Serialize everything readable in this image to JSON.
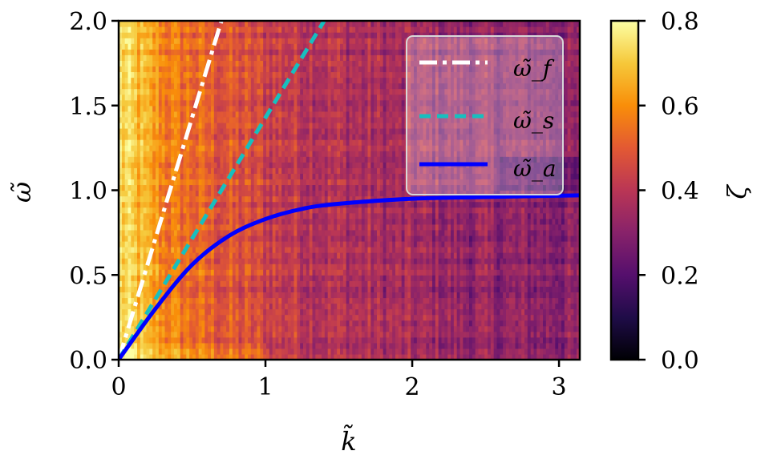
{
  "chart_data": {
    "type": "heatmap",
    "xlabel": "k̃",
    "ylabel": "ω̃",
    "xlim": [
      0,
      3.14159
    ],
    "ylim": [
      0,
      2.0
    ],
    "x_ticks": [
      0,
      1,
      2,
      3
    ],
    "y_ticks": [
      0.0,
      0.5,
      1.0,
      1.5,
      2.0
    ],
    "x_tick_labels": [
      "0",
      "1",
      "2",
      "3"
    ],
    "y_tick_labels": [
      "0.0",
      "0.5",
      "1.0",
      "1.5",
      "2.0"
    ],
    "colorbar": {
      "label": "ζ",
      "range": [
        0.0,
        0.8
      ],
      "ticks": [
        0.0,
        0.2,
        0.4,
        0.6,
        0.8
      ],
      "tick_labels": [
        "0.0",
        "0.2",
        "0.4",
        "0.6",
        "0.8"
      ],
      "colormap": "inferno"
    },
    "heatmap_description": {
      "peak_value_near_k0": 0.78,
      "value_decreases_with_k": true,
      "value_at_k_pi_low_omega": 0.2,
      "value_at_k_pi_high_omega": 0.15
    },
    "series": [
      {
        "name": "ω̃_f",
        "style": "dash-dot",
        "color": "#ffffff",
        "x": [
          0,
          0.7
        ],
        "y": [
          0,
          2.0
        ]
      },
      {
        "name": "ω̃_s",
        "style": "dashed",
        "color": "#17bfbf",
        "x": [
          0,
          1.4
        ],
        "y": [
          0,
          2.0
        ]
      },
      {
        "name": "ω̃_a",
        "style": "solid",
        "color": "#0000ff",
        "x": [
          0,
          0.25,
          0.5,
          0.75,
          1.0,
          1.25,
          1.5,
          2.0,
          2.5,
          3.14
        ],
        "y": [
          0,
          0.3,
          0.56,
          0.73,
          0.83,
          0.89,
          0.92,
          0.95,
          0.96,
          0.97
        ]
      }
    ],
    "legend": {
      "placement": "top-right",
      "entries": [
        "ω̃_f",
        "ω̃_s",
        "ω̃_a"
      ]
    }
  }
}
